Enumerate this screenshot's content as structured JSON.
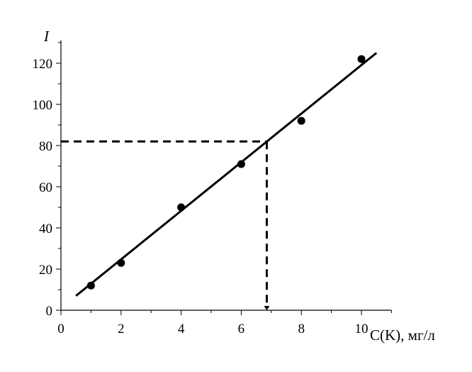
{
  "chart_data": {
    "type": "scatter",
    "title": "",
    "xlabel": "C(K), мг/л",
    "ylabel": "I",
    "xlim": [
      0,
      11
    ],
    "ylim": [
      0,
      130
    ],
    "x_ticks": [
      0,
      2,
      4,
      6,
      8,
      10
    ],
    "y_ticks": [
      0,
      20,
      40,
      60,
      80,
      100,
      120
    ],
    "x_tick_labels": [
      "0",
      "2",
      "4",
      "6",
      "8",
      "10"
    ],
    "y_tick_labels": [
      "0",
      "20",
      "40",
      "60",
      "80",
      "100",
      "120"
    ],
    "grid": false,
    "points": [
      {
        "x": 1,
        "y": 12
      },
      {
        "x": 2,
        "y": 23
      },
      {
        "x": 4,
        "y": 50
      },
      {
        "x": 6,
        "y": 71
      },
      {
        "x": 8,
        "y": 92
      },
      {
        "x": 10,
        "y": 122
      }
    ],
    "fit_line": {
      "x": [
        0.5,
        10.5
      ],
      "y": [
        7,
        125
      ]
    },
    "guide_lines": {
      "y_value": 82,
      "x_value": 6.85
    },
    "colors": {
      "line": "#000000",
      "points": "#000000"
    }
  }
}
